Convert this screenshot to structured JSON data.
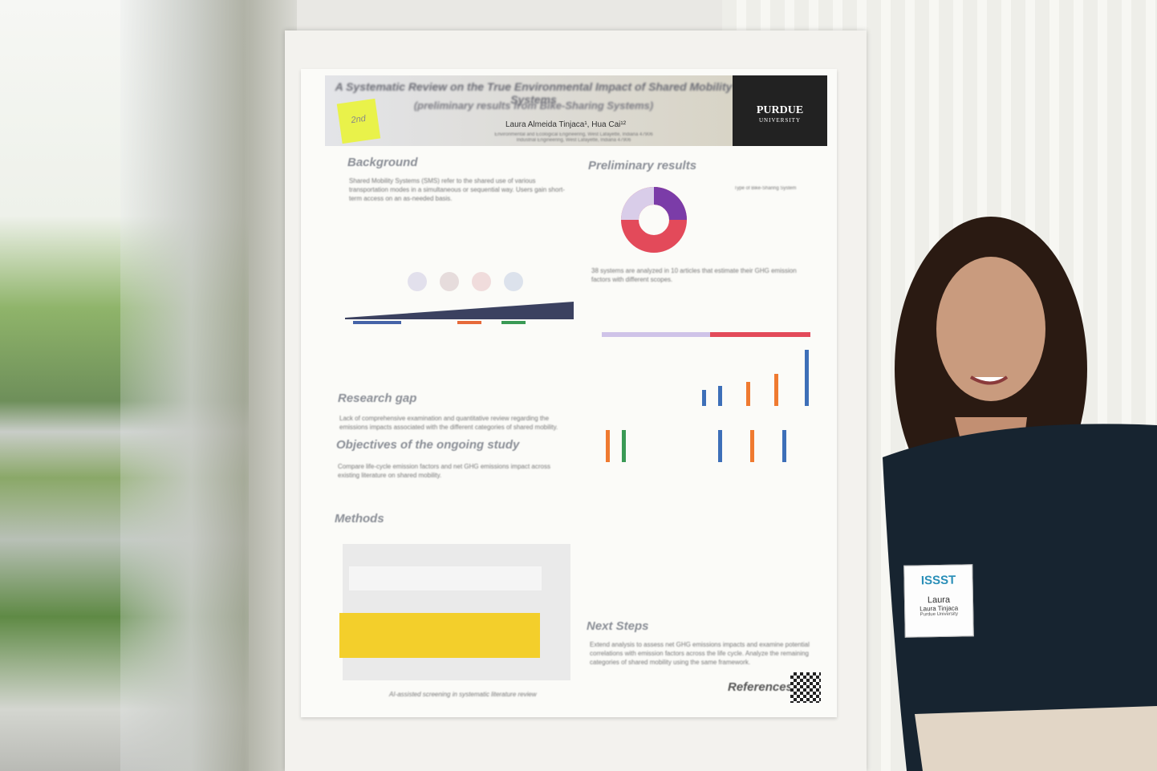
{
  "poster": {
    "title": "A Systematic Review on the True Environmental Impact of Shared Mobility Systems",
    "subtitle": "(preliminary results from Bike-Sharing Systems)",
    "authors": "Laura Almeida Tinjaca¹, Hua Cai¹²",
    "affiliations": [
      "Environmental and Ecological Engineering, West Lafayette, Indiana 47906",
      "Industrial Engineering, West Lafayette, Indiana 47906"
    ],
    "logo": {
      "name": "PURDUE",
      "sub": "UNIVERSITY"
    },
    "sticky_note": "2nd",
    "sections": [
      {
        "heading": "Background",
        "text": "Shared Mobility Systems (SMS) refer to the shared use of various transportation modes in a simultaneous or sequential way. Users gain short-term access on an as-needed basis."
      },
      {
        "heading": "Research gap",
        "text": "Lack of comprehensive examination and quantitative review regarding the emissions impacts associated with the different categories of shared mobility."
      },
      {
        "heading": "Objectives of the ongoing study",
        "text": "Compare life-cycle emission factors and net GHG emissions impact across existing literature on shared mobility."
      },
      {
        "heading": "Methods",
        "text": "AI-assisted screening in systematic literature review"
      },
      {
        "heading": "Preliminary results",
        "text": "38 systems are analyzed in 10 articles that estimate their GHG emission factors with different scopes."
      },
      {
        "heading": "Next Steps",
        "text": "Extend analysis to assess net GHG emissions impacts and examine potential correlations with emission factors across the life cycle. Analyze the remaining categories of shared mobility using the same framework."
      },
      {
        "heading": "References",
        "text": ""
      }
    ],
    "chart_legend_title": "Type of Bike-Sharing System"
  },
  "badge": {
    "event": "ISSST",
    "first_name": "Laura",
    "full_name": "Laura Tinjaca",
    "affiliation": "Purdue University"
  }
}
